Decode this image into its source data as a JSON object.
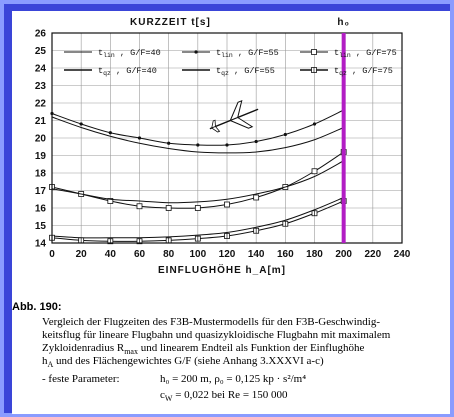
{
  "chart_data": {
    "type": "line",
    "title": "",
    "ylabel": "KURZZEIT t[s]",
    "xlabel": "EINFLUGHÖHE h_A[m]",
    "xlim": [
      0,
      240
    ],
    "ylim": [
      14,
      26
    ],
    "xticks": [
      0,
      20,
      40,
      60,
      80,
      100,
      120,
      140,
      160,
      180,
      200,
      220,
      240
    ],
    "yticks": [
      14,
      15,
      16,
      17,
      18,
      19,
      20,
      21,
      22,
      23,
      24,
      25,
      26
    ],
    "vline": {
      "x": 200,
      "label": "h₀"
    },
    "legend_position": "top",
    "series": [
      {
        "name": "t_lin , G/F=40",
        "marker": "none",
        "x": [
          0,
          20,
          40,
          60,
          80,
          100,
          120,
          140,
          160,
          180,
          200
        ],
        "values": [
          21.2,
          20.6,
          20.1,
          19.7,
          19.4,
          19.2,
          19.15,
          19.2,
          19.45,
          19.9,
          20.6
        ]
      },
      {
        "name": "t_lin , G/F=55",
        "marker": "dot",
        "x": [
          0,
          20,
          40,
          60,
          80,
          100,
          120,
          140,
          160,
          180,
          200
        ],
        "values": [
          21.4,
          20.8,
          20.3,
          20.0,
          19.7,
          19.6,
          19.6,
          19.8,
          20.2,
          20.8,
          21.6
        ]
      },
      {
        "name": "t_lin , G/F=75",
        "marker": "square",
        "x": [
          0,
          20,
          40,
          60,
          80,
          100,
          120,
          140,
          160,
          180,
          200
        ],
        "values": [
          17.2,
          16.8,
          16.4,
          16.1,
          16.0,
          16.0,
          16.2,
          16.6,
          17.2,
          18.1,
          19.2
        ]
      },
      {
        "name": "t_qz , G/F=40",
        "marker": "none",
        "x": [
          0,
          20,
          40,
          60,
          80,
          100,
          120,
          140,
          160,
          180,
          200
        ],
        "values": [
          17.1,
          16.8,
          16.5,
          16.4,
          16.3,
          16.35,
          16.5,
          16.8,
          17.2,
          17.8,
          18.7
        ]
      },
      {
        "name": "t_qz , G/F=55",
        "marker": "none",
        "x": [
          0,
          20,
          40,
          60,
          80,
          100,
          120,
          140,
          160,
          180,
          200
        ],
        "values": [
          14.4,
          14.3,
          14.3,
          14.3,
          14.35,
          14.45,
          14.6,
          14.9,
          15.3,
          15.9,
          16.6
        ]
      },
      {
        "name": "t_qz , G/F=75",
        "marker": "square-cross",
        "x": [
          0,
          20,
          40,
          60,
          80,
          100,
          120,
          140,
          160,
          180,
          200
        ],
        "values": [
          14.3,
          14.15,
          14.1,
          14.1,
          14.15,
          14.25,
          14.4,
          14.7,
          15.1,
          15.7,
          16.4
        ]
      }
    ]
  },
  "legend": {
    "items": [
      {
        "sym": "t",
        "sub": "lin",
        "rest": " , G/F=40"
      },
      {
        "sym": "t",
        "sub": "lin",
        "rest": " , G/F=55"
      },
      {
        "sym": "t",
        "sub": "lin",
        "rest": " , G/F=75"
      },
      {
        "sym": "t",
        "sub": "qz",
        "rest": " , G/F=40"
      },
      {
        "sym": "t",
        "sub": "qz",
        "rest": " , G/F=55"
      },
      {
        "sym": "t",
        "sub": "qz",
        "rest": " , G/F=75"
      }
    ]
  },
  "caption": {
    "tag": "Abb. 190:",
    "lines": [
      "Vergleich der Flugzeiten des F3B-Mustermodells für den F3B-Geschwindig-",
      "keitsflug für lineare Flugbahn und quasizykloidische Flugbahn mit maximalem",
      "Zykloidenradius R",
      "max",
      " und linearem Endteil als Funktion der Einflughöhe",
      "h",
      "A",
      " und des Flächengewichtes G/F (siehe Anhang 3.XXXVI a-c)",
      "- feste Parameter:",
      "h₀ = 200 m,  ρ₀ = 0,125 kp · s²/m⁴",
      "c",
      "W",
      " = 0,022  bei  Re = 150 000"
    ]
  }
}
